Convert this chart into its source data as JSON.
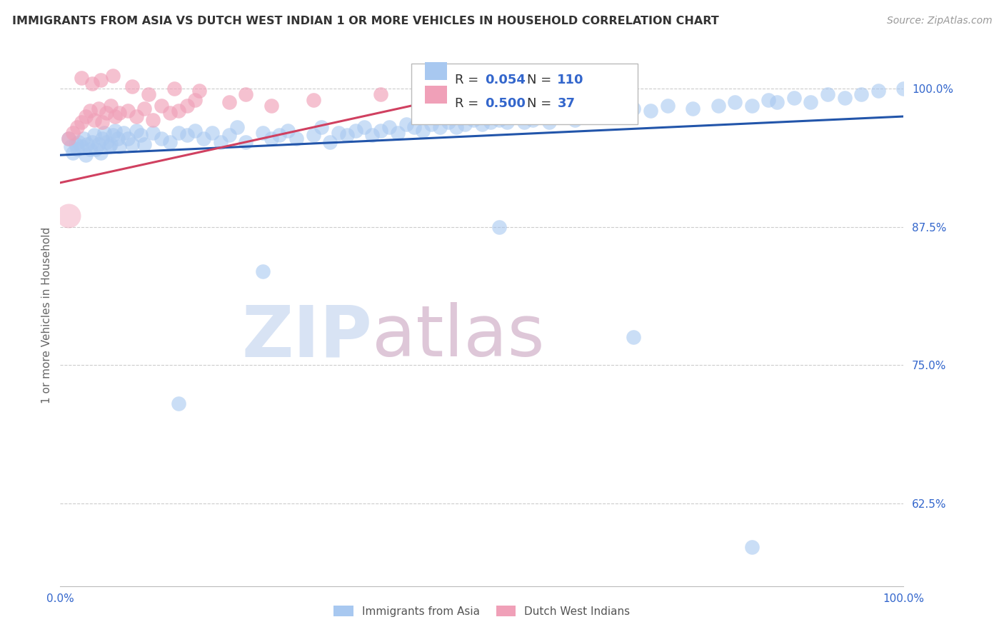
{
  "title": "IMMIGRANTS FROM ASIA VS DUTCH WEST INDIAN 1 OR MORE VEHICLES IN HOUSEHOLD CORRELATION CHART",
  "source_text": "Source: ZipAtlas.com",
  "ylabel": "1 or more Vehicles in Household",
  "xlim": [
    0.0,
    100.0
  ],
  "ylim": [
    55.0,
    104.0
  ],
  "yticks": [
    62.5,
    75.0,
    87.5,
    100.0
  ],
  "ytick_labels": [
    "62.5%",
    "75.0%",
    "87.5%",
    "100.0%"
  ],
  "xtick_labels": [
    "0.0%",
    "100.0%"
  ],
  "xtick_pos": [
    0.0,
    100.0
  ],
  "blue_color": "#A8C8F0",
  "pink_color": "#F0A0B8",
  "blue_line_color": "#2255AA",
  "pink_line_color": "#D04060",
  "grid_color": "#CCCCCC",
  "background_color": "#FFFFFF",
  "title_color": "#333333",
  "source_color": "#999999",
  "legend_R_blue": "0.054",
  "legend_N_blue": "110",
  "legend_R_pink": "0.500",
  "legend_N_pink": "37",
  "legend_value_color": "#3366CC",
  "watermark_zip_color": "#C8D8F0",
  "watermark_atlas_color": "#D0B0C8",
  "blue_trend_x": [
    0.0,
    100.0
  ],
  "blue_trend_y": [
    94.0,
    97.5
  ],
  "pink_trend_x": [
    0.0,
    52.0
  ],
  "pink_trend_y": [
    91.5,
    100.2
  ],
  "blue_scatter_x": [
    1.0,
    1.2,
    1.5,
    1.8,
    2.0,
    2.2,
    2.5,
    2.8,
    3.0,
    3.2,
    3.5,
    3.8,
    4.0,
    4.2,
    4.5,
    4.8,
    5.0,
    5.2,
    5.5,
    5.8,
    6.0,
    6.2,
    6.5,
    6.8,
    7.0,
    7.5,
    8.0,
    8.5,
    9.0,
    9.5,
    10.0,
    11.0,
    12.0,
    13.0,
    14.0,
    15.0,
    16.0,
    17.0,
    18.0,
    19.0,
    20.0,
    21.0,
    22.0,
    24.0,
    25.0,
    26.0,
    27.0,
    28.0,
    30.0,
    31.0,
    32.0,
    33.0,
    34.0,
    35.0,
    36.0,
    37.0,
    38.0,
    39.0,
    40.0,
    41.0,
    42.0,
    43.0,
    44.0,
    45.0,
    46.0,
    47.0,
    48.0,
    49.0,
    50.0,
    51.0,
    52.0,
    53.0,
    54.0,
    55.0,
    56.0,
    57.0,
    58.0,
    59.0,
    60.0,
    61.0,
    62.0,
    63.0,
    65.0,
    66.0,
    68.0,
    70.0,
    72.0,
    75.0,
    78.0,
    80.0,
    82.0,
    84.0,
    85.0,
    87.0,
    89.0,
    91.0,
    93.0,
    95.0,
    97.0,
    100.0,
    14.0,
    24.0,
    52.0,
    68.0,
    82.0
  ],
  "blue_scatter_y": [
    95.5,
    94.8,
    94.2,
    95.0,
    94.5,
    95.2,
    94.8,
    95.5,
    94.0,
    95.0,
    94.5,
    95.2,
    95.8,
    94.5,
    95.0,
    94.2,
    95.5,
    96.0,
    95.2,
    94.8,
    95.0,
    95.8,
    96.2,
    95.5,
    94.8,
    96.0,
    95.5,
    95.0,
    96.2,
    95.8,
    95.0,
    96.0,
    95.5,
    95.2,
    96.0,
    95.8,
    96.2,
    95.5,
    96.0,
    95.2,
    95.8,
    96.5,
    95.2,
    96.0,
    95.5,
    95.8,
    96.2,
    95.5,
    95.8,
    96.5,
    95.2,
    96.0,
    95.8,
    96.2,
    96.5,
    95.8,
    96.2,
    96.5,
    96.0,
    96.8,
    96.5,
    96.2,
    96.8,
    96.5,
    97.0,
    96.5,
    96.8,
    97.2,
    96.8,
    97.0,
    97.2,
    97.0,
    97.5,
    97.0,
    97.2,
    97.5,
    97.0,
    97.8,
    97.5,
    97.2,
    97.8,
    97.5,
    98.0,
    97.8,
    98.2,
    98.0,
    98.5,
    98.2,
    98.5,
    98.8,
    98.5,
    99.0,
    98.8,
    99.2,
    98.8,
    99.5,
    99.2,
    99.5,
    99.8,
    100.0,
    71.5,
    83.5,
    87.5,
    77.5,
    58.5
  ],
  "pink_scatter_x": [
    1.0,
    1.5,
    2.0,
    2.5,
    3.0,
    3.5,
    4.0,
    4.5,
    5.0,
    5.5,
    6.0,
    6.5,
    7.0,
    8.0,
    9.0,
    10.0,
    11.0,
    12.0,
    13.0,
    14.0,
    15.0,
    16.0,
    2.5,
    3.8,
    4.8,
    6.2,
    8.5,
    10.5,
    13.5,
    16.5,
    20.0,
    22.0,
    25.0,
    30.0,
    38.0,
    45.0,
    50.0
  ],
  "pink_scatter_y": [
    95.5,
    96.0,
    96.5,
    97.0,
    97.5,
    98.0,
    97.2,
    98.2,
    97.0,
    97.8,
    98.5,
    97.5,
    97.8,
    98.0,
    97.5,
    98.2,
    97.2,
    98.5,
    97.8,
    98.0,
    98.5,
    99.0,
    101.0,
    100.5,
    100.8,
    101.2,
    100.2,
    99.5,
    100.0,
    99.8,
    98.8,
    99.5,
    98.5,
    99.0,
    99.5,
    100.0,
    99.5
  ],
  "pink_scatter_low_x": [
    1.0
  ],
  "pink_scatter_low_y": [
    88.5
  ]
}
